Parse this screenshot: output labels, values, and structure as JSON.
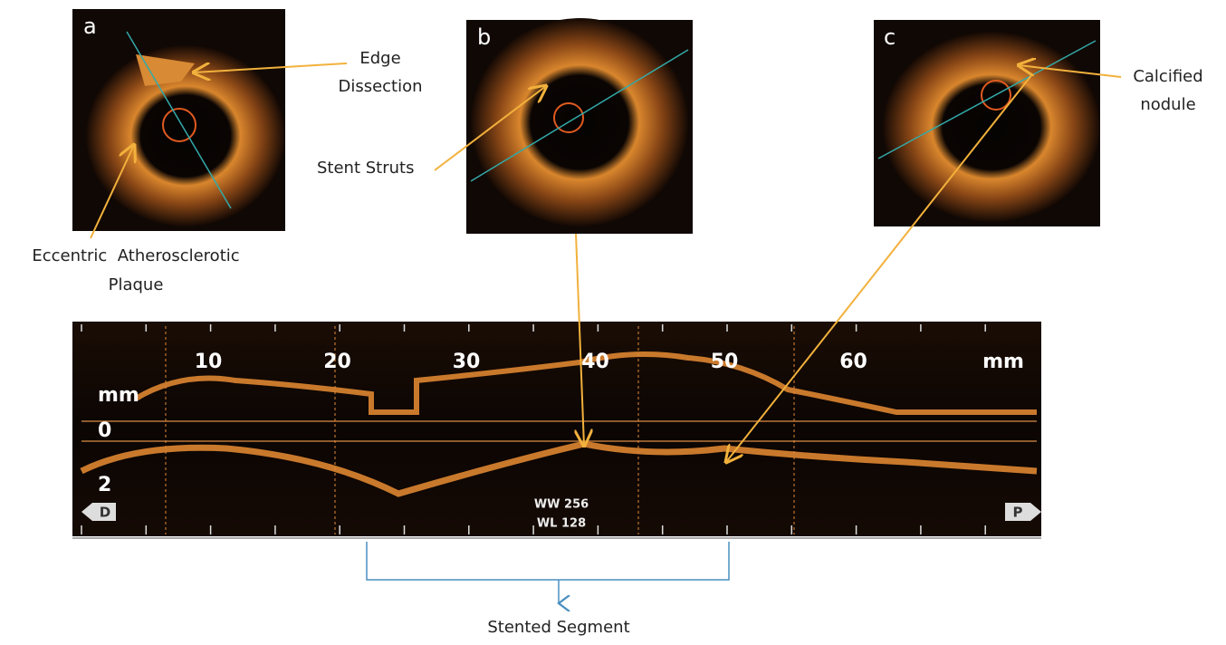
{
  "panels": [
    {
      "label": "a",
      "annotations": [
        {
          "lines": [
            "Edge",
            "Dissection"
          ]
        },
        {
          "lines": [
            "Eccentric  Atherosclerotic",
            "Plaque"
          ]
        }
      ]
    },
    {
      "label": "b",
      "annotations": [
        {
          "lines": [
            "Stent Struts"
          ]
        }
      ]
    },
    {
      "label": "c",
      "annotations": [
        {
          "lines": [
            "Calcified",
            "nodule"
          ]
        }
      ]
    }
  ],
  "longitudinal": {
    "scale_labels": [
      10,
      20,
      30,
      40,
      50,
      60
    ],
    "scale_unit": "mm",
    "depth_unit": "mm",
    "depth_labels": [
      0,
      2
    ],
    "distal": "D",
    "proximal": "P",
    "window_width": "WW 256",
    "window_level": "WL 128"
  },
  "bracket_label": "Stented Segment"
}
